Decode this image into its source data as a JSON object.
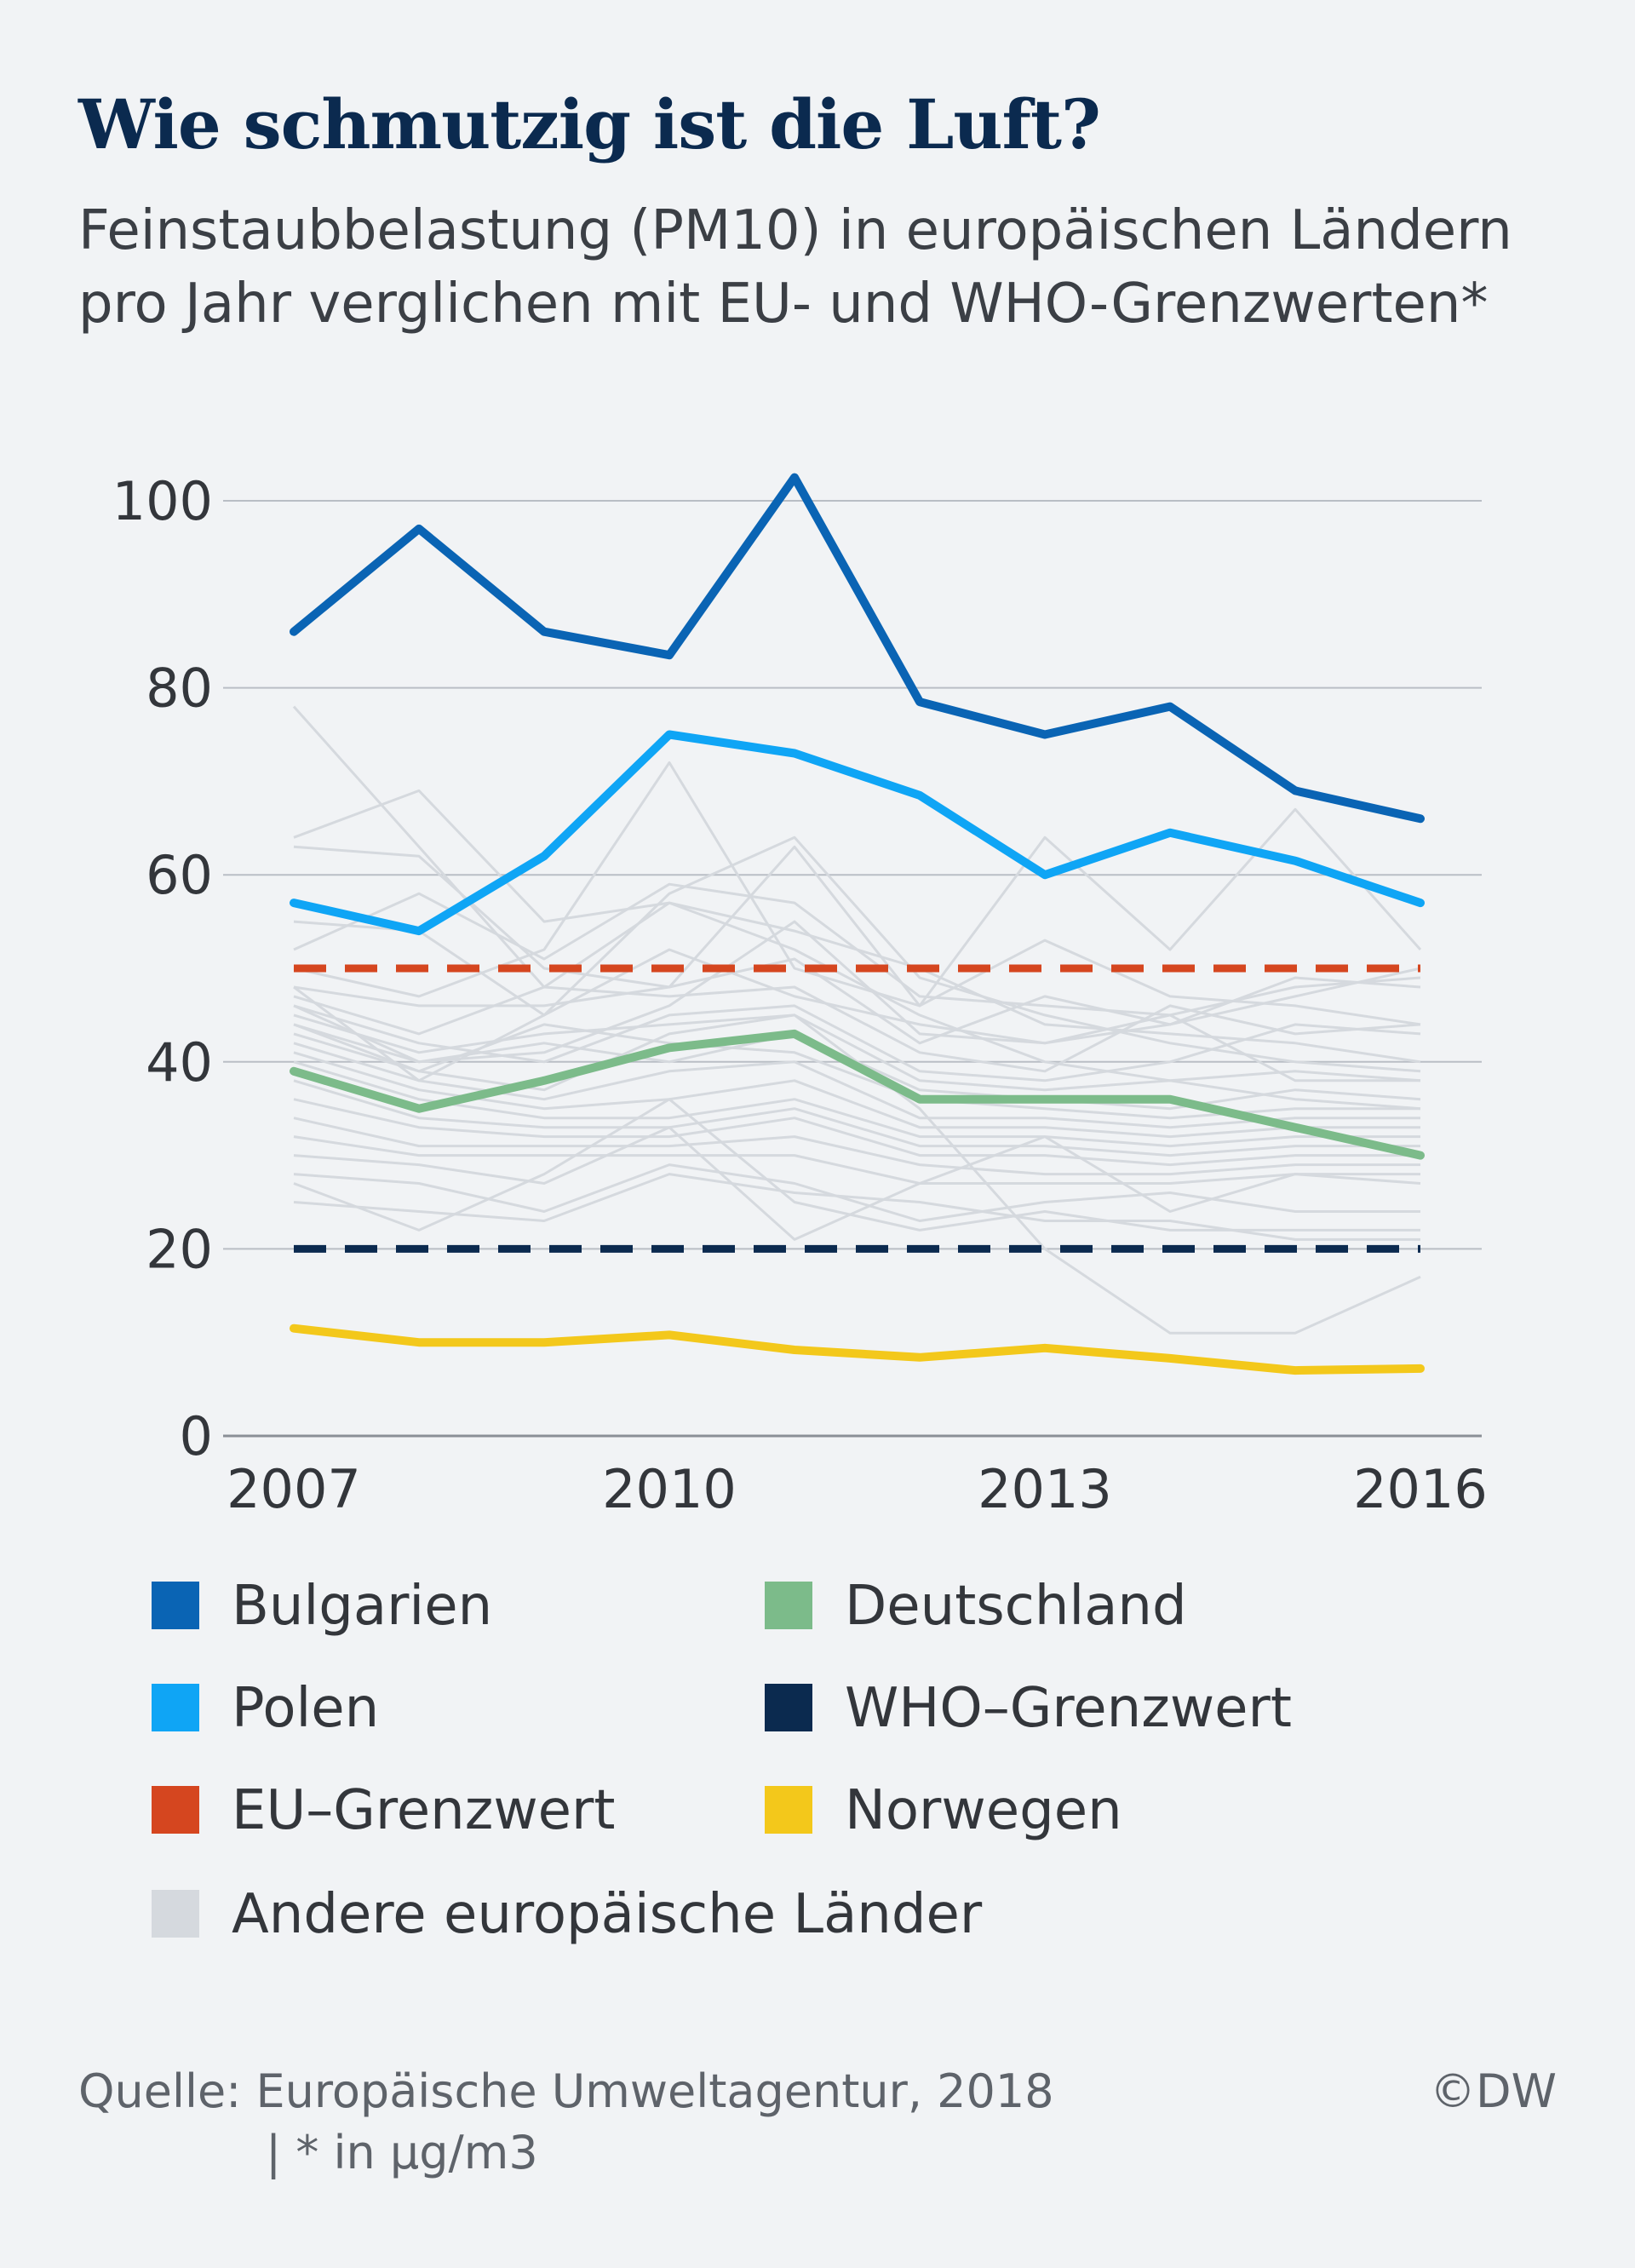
{
  "header": {
    "title": "Wie schmutzig ist die Luft?",
    "subtitle_line1": "Feinstaubbelastung (PM10) in europäischen Ländern",
    "subtitle_line2": "pro Jahr verglichen mit EU- und WHO-Grenzwerten*"
  },
  "legend": [
    {
      "label": "Bulgarien",
      "color": "#0a64b4"
    },
    {
      "label": "Deutschland",
      "color": "#7cbb8a"
    },
    {
      "label": "Polen",
      "color": "#0fa5f5"
    },
    {
      "label": "WHO–Grenzwert",
      "color": "#0b2a4f"
    },
    {
      "label": "EU–Grenzwert",
      "color": "#d5461f"
    },
    {
      "label": "Norwegen",
      "color": "#f3c81b"
    },
    {
      "label": "Andere europäische Länder",
      "color": "#d5d9de"
    }
  ],
  "footer": {
    "source_line1": "Quelle: Europäische Umweltagentur, 2018",
    "source_line2": "| * in µg/m3",
    "copyright": "©DW"
  },
  "chart_data": {
    "type": "line",
    "x": [
      2007,
      2008,
      2009,
      2010,
      2011,
      2012,
      2013,
      2014,
      2015,
      2016
    ],
    "xticks": [
      "2007",
      "2010",
      "2013",
      "2016"
    ],
    "ylim": [
      0,
      100
    ],
    "yticks": [
      "0",
      "20",
      "40",
      "60",
      "80",
      "100"
    ],
    "grid": true,
    "series": [
      {
        "name": "Bulgarien",
        "color": "#0a64b4",
        "values": [
          86,
          97,
          86,
          83.5,
          102.5,
          78.5,
          75,
          78,
          69,
          66
        ]
      },
      {
        "name": "Polen",
        "color": "#0fa5f5",
        "values": [
          57,
          54,
          62,
          75,
          73,
          68.5,
          60,
          64.5,
          61.5,
          57
        ]
      },
      {
        "name": "Deutschland",
        "color": "#7cbb8a",
        "values": [
          39,
          35,
          38,
          41.5,
          43,
          36,
          36,
          36,
          33,
          30
        ]
      },
      {
        "name": "Norwegen",
        "color": "#f3c81b",
        "values": [
          11.5,
          10,
          10,
          10.8,
          9.2,
          8.4,
          9.4,
          8.3,
          7,
          7.2
        ]
      }
    ],
    "reference_lines": [
      {
        "name": "EU–Grenzwert",
        "value": 50,
        "color": "#d5461f"
      },
      {
        "name": "WHO–Grenzwert",
        "value": 20,
        "color": "#0b2a4f"
      }
    ],
    "background_series": [
      [
        78,
        63,
        48,
        57,
        52,
        45,
        40,
        38,
        36,
        35
      ],
      [
        64,
        69,
        55,
        57,
        54,
        50,
        44,
        43,
        42,
        40
      ],
      [
        63,
        62,
        50,
        48,
        63,
        46,
        53,
        47,
        46,
        44
      ],
      [
        55,
        54,
        45,
        58,
        64,
        49,
        45,
        42,
        40,
        39
      ],
      [
        52,
        58,
        51,
        59,
        57,
        47,
        46,
        45,
        38,
        38
      ],
      [
        50,
        47,
        52,
        72,
        50,
        46,
        64,
        52,
        67,
        52
      ],
      [
        48,
        46,
        46,
        48,
        51,
        42,
        47,
        44,
        47,
        50
      ],
      [
        47,
        43,
        48,
        47,
        48,
        41,
        39,
        46,
        43,
        44
      ],
      [
        46,
        42,
        40,
        45,
        46,
        39,
        38,
        40,
        44,
        43
      ],
      [
        45,
        41,
        43,
        44,
        45,
        38,
        37,
        38,
        39,
        38
      ],
      [
        44,
        40,
        42,
        40,
        43,
        37,
        36,
        35,
        37,
        36
      ],
      [
        43,
        39,
        44,
        42,
        41,
        36,
        35,
        34,
        35,
        35
      ],
      [
        42,
        38,
        36,
        39,
        40,
        34,
        34,
        33,
        34,
        34
      ],
      [
        41,
        37,
        35,
        36,
        38,
        33,
        33,
        32,
        33,
        33
      ],
      [
        40,
        36,
        34,
        34,
        36,
        32,
        32,
        31,
        32,
        32
      ],
      [
        38,
        34,
        33,
        33,
        35,
        31,
        31,
        30,
        31,
        31
      ],
      [
        36,
        33,
        32,
        32,
        34,
        30,
        30,
        29,
        30,
        30
      ],
      [
        34,
        31,
        31,
        31,
        32,
        29,
        28,
        28,
        29,
        29
      ],
      [
        32,
        30,
        30,
        30,
        30,
        27,
        27,
        27,
        28,
        28
      ],
      [
        30,
        29,
        27,
        33,
        21,
        27,
        32,
        24,
        28,
        27
      ],
      [
        28,
        27,
        24,
        29,
        27,
        23,
        25,
        26,
        24,
        24
      ],
      [
        27,
        22,
        28,
        36,
        25,
        22,
        24,
        22,
        22,
        22
      ],
      [
        25,
        24,
        23,
        28,
        26,
        25,
        23,
        23,
        21,
        21
      ],
      [
        48,
        38,
        45,
        52,
        47,
        44,
        42,
        45,
        48,
        49
      ],
      [
        46,
        40,
        41,
        46,
        55,
        43,
        42,
        44,
        49,
        48
      ],
      [
        44,
        39,
        37,
        43,
        45,
        35,
        20,
        11,
        11,
        17
      ]
    ]
  }
}
